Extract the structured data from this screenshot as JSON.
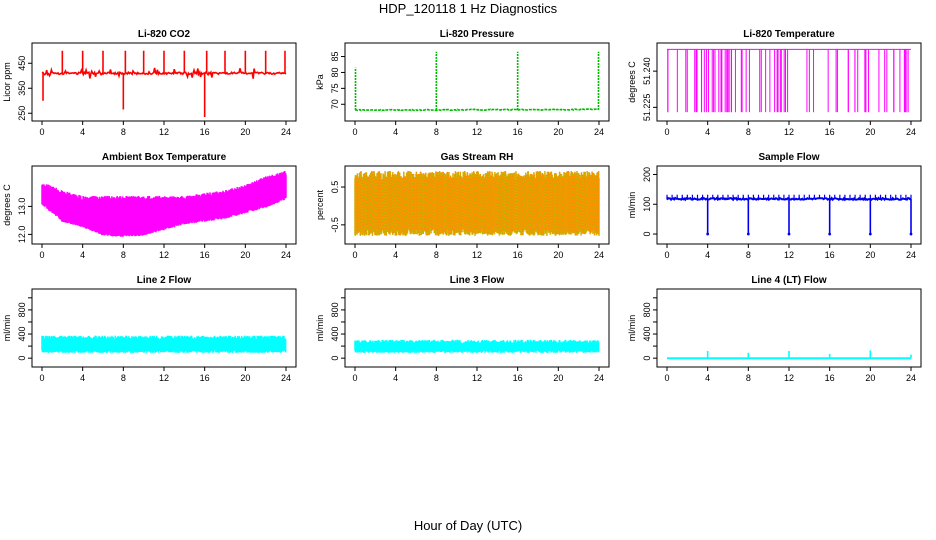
{
  "figure": {
    "title": "HDP_120118  1 Hz Diagnostics",
    "xlabel": "Hour of Day (UTC)"
  },
  "chart_data": [
    {
      "type": "line",
      "title": "Li-820 CO2",
      "ylabel": "Licor ppm",
      "color": "#ff0000",
      "xlim": [
        0,
        24
      ],
      "xticks": [
        0,
        4,
        8,
        12,
        16,
        20,
        24
      ],
      "ylim": [
        235,
        515
      ],
      "yticks": [
        250,
        350,
        450
      ],
      "ytick_labels": [
        "250",
        "350",
        "450"
      ],
      "pattern": "co2",
      "series": [
        {
          "name": "CO2",
          "x": [
            0,
            4,
            8,
            12,
            16,
            20,
            24
          ],
          "values": [
            410,
            410,
            410,
            410,
            410,
            410,
            410
          ]
        }
      ],
      "spikes": [
        {
          "x": 0.1,
          "value": 300
        },
        {
          "x": 2.0,
          "value": 500
        },
        {
          "x": 4.0,
          "value": 500
        },
        {
          "x": 6.0,
          "value": 500
        },
        {
          "x": 8.0,
          "value": 265
        },
        {
          "x": 8.2,
          "value": 500
        },
        {
          "x": 10.0,
          "value": 500
        },
        {
          "x": 12.0,
          "value": 500
        },
        {
          "x": 14.0,
          "value": 500
        },
        {
          "x": 16.0,
          "value": 235
        },
        {
          "x": 16.2,
          "value": 500
        },
        {
          "x": 18.0,
          "value": 500
        },
        {
          "x": 20.0,
          "value": 500
        },
        {
          "x": 22.0,
          "value": 500
        },
        {
          "x": 23.9,
          "value": 500
        }
      ]
    },
    {
      "type": "line",
      "title": "Li-820 Pressure",
      "ylabel": "kPa",
      "color": "#00bb00",
      "xlim": [
        0,
        24
      ],
      "xticks": [
        0,
        4,
        8,
        12,
        16,
        20,
        24
      ],
      "ylim": [
        66,
        88
      ],
      "yticks": [
        70,
        75,
        80,
        85
      ],
      "ytick_labels": [
        "70",
        "75",
        "80",
        "85"
      ],
      "pattern": "pressure",
      "series": [
        {
          "name": "Pressure",
          "x": [
            0,
            4,
            8,
            12,
            16,
            20,
            24
          ],
          "values": [
            68.2,
            68.2,
            68.2,
            68.3,
            68.3,
            68.3,
            68.4
          ]
        }
      ],
      "spikes": [
        {
          "x": 0.05,
          "value": 81.5
        },
        {
          "x": 8.0,
          "value": 86.5
        },
        {
          "x": 16.0,
          "value": 86.5
        },
        {
          "x": 23.95,
          "value": 86.5
        }
      ]
    },
    {
      "type": "line",
      "title": "Li-820 Temperature",
      "ylabel": "degrees C",
      "color": "#ff00ff",
      "xlim": [
        0,
        24
      ],
      "xticks": [
        0,
        4,
        8,
        12,
        16,
        20,
        24
      ],
      "ylim": [
        51.221,
        51.25
      ],
      "yticks": [
        51.225,
        51.24
      ],
      "ytick_labels": [
        "51.225",
        "51.240"
      ],
      "pattern": "temperature",
      "series": [
        {
          "name": "Temperature",
          "x": [
            0,
            24
          ],
          "values": [
            51.249,
            51.249
          ]
        }
      ],
      "low_value": 51.223
    },
    {
      "type": "line",
      "title": "Ambient Box Temperature",
      "ylabel": "degrees C",
      "color": "#ff00ff",
      "xlim": [
        0,
        24
      ],
      "xticks": [
        0,
        4,
        8,
        12,
        16,
        20,
        24
      ],
      "ylim": [
        11.8,
        14.3
      ],
      "yticks": [
        12.0,
        13.0
      ],
      "ytick_labels": [
        "12.0",
        "13.0"
      ],
      "pattern": "band",
      "series": [
        {
          "name": "upper",
          "x": [
            0,
            2,
            4,
            6,
            8,
            10,
            12,
            14,
            16,
            18,
            20,
            22,
            24
          ],
          "values": [
            13.8,
            13.5,
            13.3,
            13.3,
            13.3,
            13.3,
            13.3,
            13.3,
            13.4,
            13.5,
            13.7,
            14.0,
            14.2
          ]
        },
        {
          "name": "lower",
          "x": [
            0,
            2,
            4,
            6,
            8,
            10,
            12,
            14,
            16,
            18,
            20,
            22,
            24
          ],
          "values": [
            13.1,
            12.5,
            12.3,
            12.0,
            11.95,
            12.0,
            12.2,
            12.4,
            12.5,
            12.6,
            12.8,
            13.0,
            13.3
          ]
        }
      ]
    },
    {
      "type": "scatter",
      "title": "Gas Stream RH",
      "ylabel": "percent",
      "color": "#ff8c00",
      "fill_color": "#c8b400",
      "xlim": [
        0,
        24
      ],
      "xticks": [
        0,
        4,
        8,
        12,
        16,
        20,
        24
      ],
      "ylim": [
        -0.9,
        0.95
      ],
      "yticks": [
        -0.5,
        0.5
      ],
      "ytick_labels": [
        "-0.5",
        "0.5"
      ],
      "pattern": "band",
      "series": [
        {
          "name": "upper",
          "x": [
            0,
            24
          ],
          "values": [
            0.75,
            0.75
          ]
        },
        {
          "name": "lower",
          "x": [
            0,
            24
          ],
          "values": [
            -0.65,
            -0.65
          ]
        }
      ]
    },
    {
      "type": "line",
      "title": "Sample Flow",
      "ylabel": "ml/min",
      "color": "#0000ee",
      "xlim": [
        0,
        24
      ],
      "xticks": [
        0,
        4,
        8,
        12,
        16,
        20,
        24
      ],
      "ylim": [
        -20,
        215
      ],
      "yticks": [
        0,
        100,
        200
      ],
      "ytick_labels": [
        "0",
        "100",
        "200"
      ],
      "pattern": "flow",
      "series": [
        {
          "name": "Flow",
          "x": [
            0,
            24
          ],
          "values": [
            118,
            118
          ]
        }
      ],
      "dips": [
        {
          "x": 4.0,
          "value": 0
        },
        {
          "x": 8.0,
          "value": 0
        },
        {
          "x": 12.0,
          "value": 0
        },
        {
          "x": 16.0,
          "value": 0
        },
        {
          "x": 20.0,
          "value": 0
        },
        {
          "x": 24.0,
          "value": 0
        }
      ]
    },
    {
      "type": "area",
      "title": "Line 2 Flow",
      "ylabel": "ml/min",
      "color": "#00ffff",
      "xlim": [
        0,
        24
      ],
      "xticks": [
        0,
        4,
        8,
        12,
        16,
        20,
        24
      ],
      "ylim": [
        -80,
        1080
      ],
      "yticks": [
        0,
        200,
        400,
        600,
        800,
        1000
      ],
      "ytick_labels": [
        "0",
        "",
        "400",
        "",
        "800",
        ""
      ],
      "pattern": "band",
      "series": [
        {
          "name": "upper",
          "x": [
            0,
            24
          ],
          "values": [
            340,
            340
          ]
        },
        {
          "name": "lower",
          "x": [
            0,
            24
          ],
          "values": [
            110,
            110
          ]
        }
      ],
      "gaps": [
        4.0,
        8.0,
        12.0,
        16.0,
        20.0,
        24.0
      ]
    },
    {
      "type": "area",
      "title": "Line 3 Flow",
      "ylabel": "ml/min",
      "color": "#00ffff",
      "xlim": [
        0,
        24
      ],
      "xticks": [
        0,
        4,
        8,
        12,
        16,
        20,
        24
      ],
      "ylim": [
        -80,
        1080
      ],
      "yticks": [
        0,
        200,
        400,
        600,
        800,
        1000
      ],
      "ytick_labels": [
        "0",
        "",
        "400",
        "",
        "800",
        ""
      ],
      "pattern": "band",
      "series": [
        {
          "name": "upper",
          "x": [
            0,
            24
          ],
          "values": [
            270,
            270
          ]
        },
        {
          "name": "lower",
          "x": [
            0,
            24
          ],
          "values": [
            110,
            110
          ]
        }
      ],
      "gaps": [
        4.0,
        8.0,
        12.0,
        16.0,
        20.0,
        24.0
      ]
    },
    {
      "type": "line",
      "title": "Line 4 (LT) Flow",
      "ylabel": "ml/min",
      "color": "#00ffff",
      "xlim": [
        0,
        24
      ],
      "xticks": [
        0,
        4,
        8,
        12,
        16,
        20,
        24
      ],
      "ylim": [
        -80,
        1080
      ],
      "yticks": [
        0,
        200,
        400,
        600,
        800,
        1000
      ],
      "ytick_labels": [
        "0",
        "",
        "400",
        "",
        "800",
        ""
      ],
      "pattern": "flow",
      "series": [
        {
          "name": "Flow",
          "x": [
            0,
            24
          ],
          "values": [
            0,
            0
          ]
        }
      ],
      "spikes": [
        {
          "x": 4.0,
          "value": 120
        },
        {
          "x": 8.0,
          "value": 90
        },
        {
          "x": 12.0,
          "value": 120
        },
        {
          "x": 16.0,
          "value": 70
        },
        {
          "x": 20.0,
          "value": 130
        },
        {
          "x": 24.0,
          "value": 60
        }
      ]
    }
  ]
}
